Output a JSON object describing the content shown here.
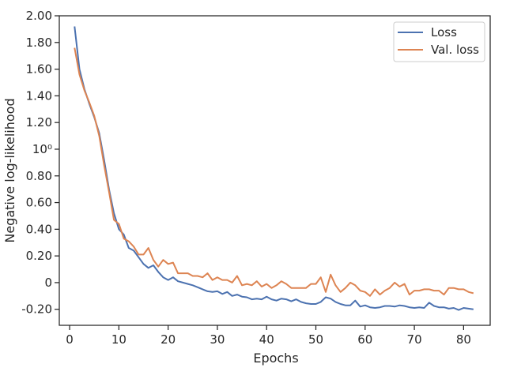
{
  "chart_data": {
    "type": "line",
    "xlabel": "Epochs",
    "ylabel": "Negative log-likelihood",
    "xlim": [
      -2.1,
      85.4
    ],
    "ylim": [
      -0.32,
      2.0
    ],
    "x_ticks": [
      0,
      10,
      20,
      30,
      40,
      50,
      60,
      70,
      80
    ],
    "x_tick_labels": [
      "0",
      "10",
      "20",
      "30",
      "40",
      "50",
      "60",
      "70",
      "80"
    ],
    "y_ticks": [
      -0.2,
      0,
      0.2,
      0.4,
      0.6,
      0.8,
      1.0,
      1.2,
      1.4,
      1.6,
      1.8,
      2.0
    ],
    "y_tick_labels": [
      "-0.20",
      "0",
      "0.20",
      "0.40",
      "0.60",
      "0.80",
      "10⁰",
      "1.20",
      "1.40",
      "1.60",
      "1.80",
      "2.00"
    ],
    "grid": false,
    "legend_position": "top-right",
    "x": [
      1,
      2,
      3,
      4,
      5,
      6,
      7,
      8,
      9,
      10,
      11,
      12,
      13,
      14,
      15,
      16,
      17,
      18,
      19,
      20,
      21,
      22,
      23,
      24,
      25,
      26,
      27,
      28,
      29,
      30,
      31,
      32,
      33,
      34,
      35,
      36,
      37,
      38,
      39,
      40,
      41,
      42,
      43,
      44,
      45,
      46,
      47,
      48,
      49,
      50,
      51,
      52,
      53,
      54,
      55,
      56,
      57,
      58,
      59,
      60,
      61,
      62,
      63,
      64,
      65,
      66,
      67,
      68,
      69,
      70,
      71,
      72,
      73,
      74,
      75,
      76,
      77,
      78,
      79,
      80,
      81,
      82
    ],
    "series": [
      {
        "name": "Loss",
        "color": "#4c72b0",
        "values": [
          1.92,
          1.6,
          1.45,
          1.34,
          1.24,
          1.12,
          0.92,
          0.7,
          0.52,
          0.4,
          0.36,
          0.26,
          0.24,
          0.19,
          0.14,
          0.11,
          0.13,
          0.08,
          0.04,
          0.02,
          0.04,
          0.01,
          0.0,
          -0.01,
          -0.02,
          -0.035,
          -0.05,
          -0.065,
          -0.07,
          -0.065,
          -0.085,
          -0.07,
          -0.1,
          -0.09,
          -0.105,
          -0.11,
          -0.125,
          -0.12,
          -0.125,
          -0.105,
          -0.125,
          -0.135,
          -0.12,
          -0.125,
          -0.14,
          -0.125,
          -0.145,
          -0.155,
          -0.16,
          -0.16,
          -0.145,
          -0.11,
          -0.12,
          -0.145,
          -0.16,
          -0.17,
          -0.17,
          -0.135,
          -0.18,
          -0.17,
          -0.185,
          -0.19,
          -0.185,
          -0.175,
          -0.175,
          -0.18,
          -0.17,
          -0.175,
          -0.185,
          -0.19,
          -0.185,
          -0.19,
          -0.15,
          -0.175,
          -0.185,
          -0.185,
          -0.195,
          -0.19,
          -0.205,
          -0.19,
          -0.195,
          -0.2
        ]
      },
      {
        "name": "Val. loss",
        "color": "#dd8452",
        "values": [
          1.76,
          1.56,
          1.44,
          1.35,
          1.25,
          1.1,
          0.88,
          0.68,
          0.47,
          0.44,
          0.33,
          0.31,
          0.27,
          0.21,
          0.21,
          0.26,
          0.17,
          0.12,
          0.17,
          0.14,
          0.15,
          0.07,
          0.07,
          0.07,
          0.05,
          0.05,
          0.04,
          0.07,
          0.02,
          0.04,
          0.02,
          0.02,
          0.0,
          0.05,
          -0.02,
          -0.01,
          -0.02,
          0.01,
          -0.03,
          -0.01,
          -0.04,
          -0.02,
          0.01,
          -0.01,
          -0.04,
          -0.04,
          -0.04,
          -0.04,
          -0.01,
          -0.01,
          0.04,
          -0.07,
          0.06,
          -0.02,
          -0.07,
          -0.04,
          0.0,
          -0.02,
          -0.06,
          -0.07,
          -0.1,
          -0.05,
          -0.09,
          -0.06,
          -0.04,
          0.0,
          -0.03,
          -0.01,
          -0.09,
          -0.06,
          -0.06,
          -0.05,
          -0.05,
          -0.06,
          -0.06,
          -0.09,
          -0.04,
          -0.04,
          -0.05,
          -0.05,
          -0.07,
          -0.08
        ]
      }
    ]
  }
}
